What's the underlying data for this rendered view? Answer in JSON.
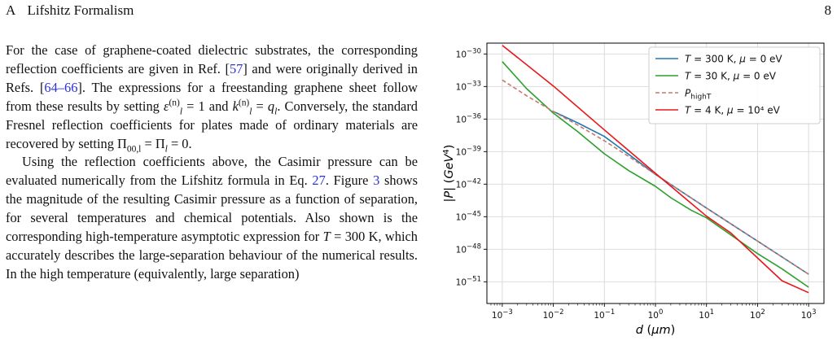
{
  "header": {
    "section_number": "A",
    "section_title": "Lifshitz Formalism",
    "page_number": "8"
  },
  "paragraph1": {
    "t1": "For the case of graphene-coated dielectric substrates, the corresponding reflection coefficients are given in Ref. [",
    "ref_57": "57",
    "t2": "] and were originally derived in Refs. [",
    "ref_64_66": "64–66",
    "t3": "]. The expressions for a freestanding graphene sheet follow from these results by setting ",
    "eps": "ε",
    "sup_n": "(n)",
    "sub_l": "l",
    "t4": " = 1 and ",
    "k": "k",
    "t5": " = ",
    "q": "q",
    "t6": ". Conversely, the standard Fresnel reflection coefficients for plates made of ordinary materials are recovered by setting ",
    "pi": "Π",
    "sub_00l": "00,l",
    "t7": " = ",
    "t8": " = 0."
  },
  "paragraph2": {
    "t1": "Using the reflection coefficients above, the Casimir pressure can be evaluated numerically from the Lifshitz formula in Eq. ",
    "ref_27": "27",
    "t2": ". Figure ",
    "ref_3": "3",
    "t3": " shows the magnitude of the resulting Casimir pressure as a function of separation, for several temperatures and chemical potentials. Also shown is the corresponding high-temperature asymptotic expression for ",
    "T": "T",
    "t4": " = 300 K, which accurately describes the large-separation behaviour of the numerical results. In the high temperature (equivalently, large separation)"
  },
  "chart_data": {
    "type": "line",
    "xlabel": "d (μm)",
    "ylabel": "|P| (GeV⁴)",
    "xscale": "log",
    "yscale": "log",
    "xlim": [
      0.0005,
      2000
    ],
    "ylim": [
      1e-53,
      1e-29
    ],
    "grid": true,
    "legend_position": "top-right",
    "x_ticks": [
      "10⁻³",
      "10⁻²",
      "10⁻¹",
      "10⁰",
      "10¹",
      "10²",
      "10³"
    ],
    "y_ticks": [
      "10⁻³⁰",
      "10⁻³³",
      "10⁻³⁶",
      "10⁻³⁹",
      "10⁻⁴²",
      "10⁻⁴⁵",
      "10⁻⁴⁸",
      "10⁻⁵¹"
    ],
    "x_tick_values": [
      0.001,
      0.01,
      0.1,
      1,
      10,
      100,
      1000
    ],
    "y_tick_exponents": [
      -30,
      -33,
      -36,
      -39,
      -42,
      -45,
      -48,
      -51
    ],
    "series": [
      {
        "name": "T = 300 K, μ = 0 eV",
        "color": "#1f77b4",
        "dash": "none",
        "x": [
          0.01,
          0.03,
          0.1,
          0.3,
          1,
          10,
          100,
          1000
        ],
        "log10_y": [
          -35.3,
          -36.35,
          -37.6,
          -39.25,
          -41.1,
          -44.2,
          -47.25,
          -50.3
        ]
      },
      {
        "name": "T = 30 K, μ = 0 eV",
        "color": "#2ca02c",
        "dash": "none",
        "x": [
          0.001,
          0.003,
          0.01,
          0.03,
          0.1,
          0.3,
          1,
          2,
          5,
          10,
          100,
          300,
          1000
        ],
        "log10_y": [
          -30.7,
          -33.2,
          -35.45,
          -37.15,
          -39.2,
          -40.75,
          -42.2,
          -43.25,
          -44.4,
          -45.1,
          -48.4,
          -49.8,
          -51.5
        ]
      },
      {
        "name": "P_highT",
        "color": "#c47a6b",
        "dash": "5,3",
        "x": [
          0.001,
          0.003,
          0.01,
          0.03,
          0.1,
          0.3,
          1,
          10,
          100,
          1000
        ],
        "log10_y": [
          -32.4,
          -33.85,
          -35.3,
          -36.55,
          -38.0,
          -39.45,
          -41.1,
          -44.2,
          -47.25,
          -50.3
        ]
      },
      {
        "name": "T = 4 K, μ = 10⁴ eV",
        "color": "#e8161b",
        "dash": "none",
        "x": [
          0.001,
          0.01,
          0.1,
          1,
          10,
          30,
          100,
          300,
          1000
        ],
        "log10_y": [
          -29.2,
          -32.95,
          -37.0,
          -41.0,
          -44.95,
          -46.5,
          -48.8,
          -50.9,
          -52.0
        ]
      }
    ]
  }
}
